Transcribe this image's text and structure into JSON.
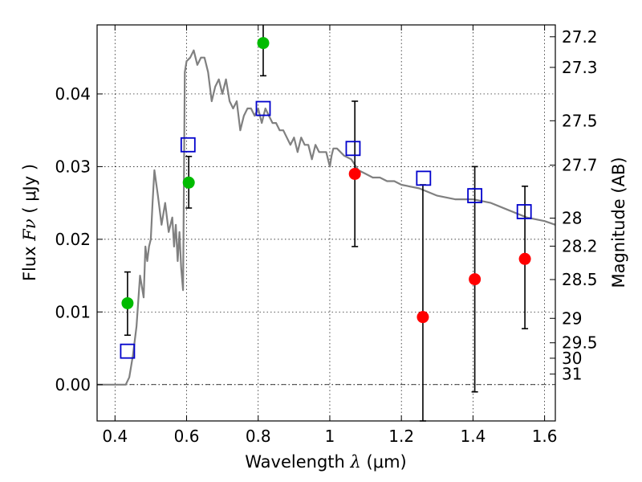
{
  "chart_data": {
    "type": "scatter",
    "xlabel_prefix": "Wavelength",
    "xlabel_symbol": "λ",
    "xlabel_units": "(μm)",
    "ylabel_prefix": "Flux",
    "ylabel_symbol": "Fν",
    "ylabel_units": "( μJy )",
    "y2label": "Magnitude (AB)",
    "xlim": [
      0.35,
      1.63
    ],
    "ylim": [
      -0.005,
      0.0495
    ],
    "grid": true,
    "grid_style": "dotted",
    "x_ticks": [
      0.4,
      0.6,
      0.8,
      1.0,
      1.2,
      1.4,
      1.6
    ],
    "x_tick_labels": [
      "0.4",
      "0.6",
      "0.8",
      "1",
      "1.2",
      "1.4",
      "1.6"
    ],
    "y_ticks": [
      0.0,
      0.01,
      0.02,
      0.03,
      0.04
    ],
    "y_tick_labels": [
      "0.00",
      "0.01",
      "0.02",
      "0.03",
      "0.04"
    ],
    "y2_ticks": [
      {
        "label": "27.2",
        "mag": 27.2
      },
      {
        "label": "27.3",
        "mag": 27.3
      },
      {
        "label": "27.5",
        "mag": 27.5
      },
      {
        "label": "27.7",
        "mag": 27.7
      },
      {
        "label": "28",
        "mag": 28.0
      },
      {
        "label": "28.2",
        "mag": 28.2
      },
      {
        "label": "28.5",
        "mag": 28.5
      },
      {
        "label": "29",
        "mag": 29.0
      },
      {
        "label": "29.5",
        "mag": 29.5
      },
      {
        "label": "30",
        "mag": 30.0
      },
      {
        "label": "31",
        "mag": 31.0
      }
    ],
    "zero_reference_line": 0.0,
    "colors": {
      "model": "#808080",
      "detection": "#00bb00",
      "measurement": "#ff0000",
      "model_photometry": "#0000cc",
      "errorbar": "#000000"
    },
    "model_spectrum": {
      "x": [
        0.35,
        0.43,
        0.44,
        0.45,
        0.46,
        0.47,
        0.48,
        0.485,
        0.49,
        0.495,
        0.5,
        0.505,
        0.51,
        0.52,
        0.53,
        0.54,
        0.55,
        0.56,
        0.565,
        0.57,
        0.575,
        0.58,
        0.585,
        0.59,
        0.595,
        0.6,
        0.61,
        0.62,
        0.63,
        0.64,
        0.65,
        0.66,
        0.67,
        0.68,
        0.69,
        0.7,
        0.71,
        0.72,
        0.73,
        0.74,
        0.75,
        0.76,
        0.77,
        0.78,
        0.79,
        0.8,
        0.81,
        0.82,
        0.83,
        0.84,
        0.85,
        0.86,
        0.87,
        0.88,
        0.89,
        0.9,
        0.91,
        0.92,
        0.93,
        0.94,
        0.95,
        0.96,
        0.97,
        0.98,
        0.99,
        1.0,
        1.005,
        1.01,
        1.02,
        1.04,
        1.06,
        1.08,
        1.1,
        1.12,
        1.14,
        1.16,
        1.18,
        1.2,
        1.25,
        1.3,
        1.35,
        1.4,
        1.45,
        1.5,
        1.55,
        1.6,
        1.63
      ],
      "y": [
        0.0,
        0.0,
        0.001,
        0.004,
        0.008,
        0.015,
        0.012,
        0.019,
        0.017,
        0.019,
        0.02,
        0.025,
        0.0295,
        0.026,
        0.022,
        0.025,
        0.021,
        0.023,
        0.019,
        0.022,
        0.017,
        0.021,
        0.016,
        0.013,
        0.043,
        0.0445,
        0.045,
        0.046,
        0.044,
        0.045,
        0.045,
        0.043,
        0.039,
        0.041,
        0.042,
        0.04,
        0.042,
        0.039,
        0.038,
        0.039,
        0.035,
        0.037,
        0.038,
        0.038,
        0.037,
        0.038,
        0.036,
        0.038,
        0.037,
        0.036,
        0.036,
        0.035,
        0.035,
        0.034,
        0.033,
        0.034,
        0.032,
        0.034,
        0.033,
        0.033,
        0.031,
        0.033,
        0.032,
        0.032,
        0.032,
        0.03,
        0.0315,
        0.0325,
        0.0325,
        0.0315,
        0.031,
        0.0295,
        0.029,
        0.0285,
        0.0285,
        0.028,
        0.028,
        0.0275,
        0.027,
        0.026,
        0.0255,
        0.0255,
        0.025,
        0.024,
        0.023,
        0.0225,
        0.022
      ]
    },
    "series": [
      {
        "role": "detection",
        "marker": "circle",
        "points": [
          {
            "x": 0.435,
            "y": 0.0112,
            "err_lo": 0.0068,
            "err_hi": 0.0155
          },
          {
            "x": 0.606,
            "y": 0.0278,
            "err_lo": 0.0243,
            "err_hi": 0.0314
          },
          {
            "x": 0.814,
            "y": 0.047,
            "err_lo": 0.0425,
            "err_hi": 0.0515
          }
        ]
      },
      {
        "role": "measurement",
        "marker": "circle",
        "points": [
          {
            "x": 1.07,
            "y": 0.029,
            "err_lo": 0.019,
            "err_hi": 0.039
          },
          {
            "x": 1.26,
            "y": 0.0093,
            "err_lo": -0.005,
            "err_hi": 0.0275
          },
          {
            "x": 1.405,
            "y": 0.0145,
            "err_lo": -0.001,
            "err_hi": 0.03
          },
          {
            "x": 1.545,
            "y": 0.0173,
            "err_lo": 0.0077,
            "err_hi": 0.0273
          }
        ]
      },
      {
        "role": "model_photometry",
        "marker": "square",
        "points": [
          {
            "x": 0.435,
            "y": 0.0046
          },
          {
            "x": 0.604,
            "y": 0.033
          },
          {
            "x": 0.814,
            "y": 0.038
          },
          {
            "x": 1.065,
            "y": 0.0325
          },
          {
            "x": 1.262,
            "y": 0.0284
          },
          {
            "x": 1.405,
            "y": 0.026
          },
          {
            "x": 1.543,
            "y": 0.0238
          }
        ]
      }
    ]
  }
}
